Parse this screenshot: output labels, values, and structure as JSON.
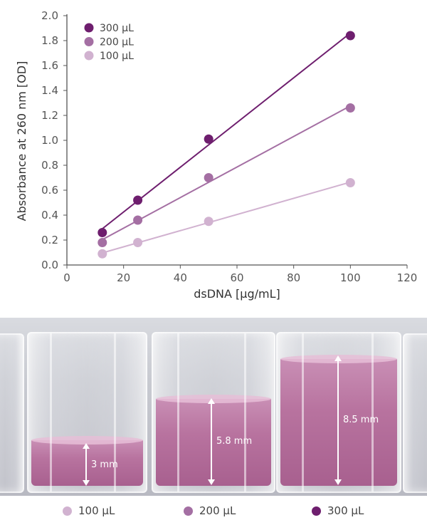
{
  "chart_data": {
    "type": "scatter",
    "xlabel": "dsDNA [µg/mL]",
    "ylabel": "Absorbance at 260 nm [OD]",
    "xlim": [
      0,
      120
    ],
    "ylim": [
      0.0,
      2.0
    ],
    "x_ticks": [
      "0",
      "20",
      "40",
      "60",
      "80",
      "100",
      "120"
    ],
    "y_ticks": [
      "0.0",
      "0.2",
      "0.4",
      "0.6",
      "0.8",
      "1.0",
      "1.2",
      "1.4",
      "1.6",
      "1.8",
      "2.0"
    ],
    "x_tick_values": [
      0,
      20,
      40,
      60,
      80,
      100,
      120
    ],
    "y_tick_values": [
      0.0,
      0.2,
      0.4,
      0.6,
      0.8,
      1.0,
      1.2,
      1.4,
      1.6,
      1.8,
      2.0
    ],
    "grid": false,
    "legend_position": "top-left",
    "trendlines": true,
    "series": [
      {
        "name": "300 µL",
        "color": "#6e1e6e",
        "x": [
          12.5,
          25,
          50,
          100
        ],
        "y": [
          0.26,
          0.52,
          1.01,
          1.84
        ]
      },
      {
        "name": "200 µL",
        "color": "#a46fa3",
        "x": [
          12.5,
          25,
          50,
          100
        ],
        "y": [
          0.18,
          0.36,
          0.7,
          1.26
        ]
      },
      {
        "name": "100 µL",
        "color": "#d1b2d0",
        "x": [
          12.5,
          25,
          50,
          100
        ],
        "y": [
          0.09,
          0.18,
          0.35,
          0.66
        ]
      }
    ]
  },
  "photo": {
    "heights": [
      "3 mm",
      "5.8 mm",
      "8.5 mm"
    ]
  },
  "bottom_legend": [
    {
      "label": "100 µL",
      "color": "#d1b2d0"
    },
    {
      "label": "200 µL",
      "color": "#a46fa3"
    },
    {
      "label": "300 µL",
      "color": "#6e1e6e"
    }
  ]
}
